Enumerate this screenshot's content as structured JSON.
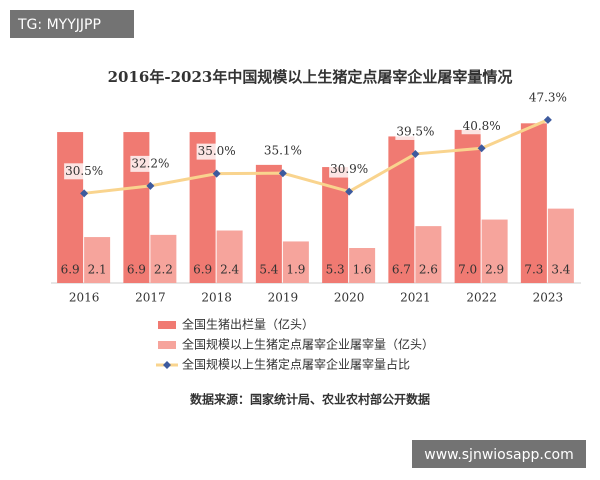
{
  "watermark": "TG: MYYJJPP",
  "site": "www.sjnwiosapp.com",
  "chart_data": {
    "type": "bar-line",
    "title": "2016年-2023年中国规模以上生猪定点屠宰企业屠宰量情况",
    "categories": [
      "2016",
      "2017",
      "2018",
      "2019",
      "2020",
      "2021",
      "2022",
      "2023"
    ],
    "ylim": [
      0,
      8
    ],
    "y2lim": [
      10,
      50
    ],
    "series": [
      {
        "name": "全国生猪出栏量（亿头）",
        "color": "#f07a72",
        "type": "bar",
        "values": [
          6.9,
          6.9,
          6.9,
          5.4,
          5.3,
          6.7,
          7.0,
          7.3
        ],
        "value_labels": [
          "6.9",
          "6.9",
          "6.9",
          "5.4",
          "5.3",
          "6.7",
          "7.0",
          "7.3"
        ]
      },
      {
        "name": "全国规模以上生猪定点屠宰企业屠宰量（亿头）",
        "color": "#f6a49c",
        "type": "bar",
        "values": [
          2.1,
          2.2,
          2.4,
          1.9,
          1.6,
          2.6,
          2.9,
          3.4
        ],
        "value_labels": [
          "2.1",
          "2.2",
          "2.4",
          "1.9",
          "1.6",
          "2.6",
          "2.9",
          "3.4"
        ]
      },
      {
        "name": "全国规模以上生猪定点屠宰企业屠宰量占比",
        "color": "#f9d48e",
        "marker_color": "#3d5a9e",
        "type": "line",
        "axis": "y2",
        "values": [
          30.5,
          32.2,
          35.0,
          35.1,
          30.9,
          39.5,
          40.8,
          47.3
        ],
        "value_labels": [
          "30.5%",
          "32.2%",
          "35.0%",
          "35.1%",
          "30.9%",
          "39.5%",
          "40.8%",
          "47.3%"
        ]
      }
    ],
    "source": "数据来源：国家统计局、农业农村部公开数据"
  }
}
